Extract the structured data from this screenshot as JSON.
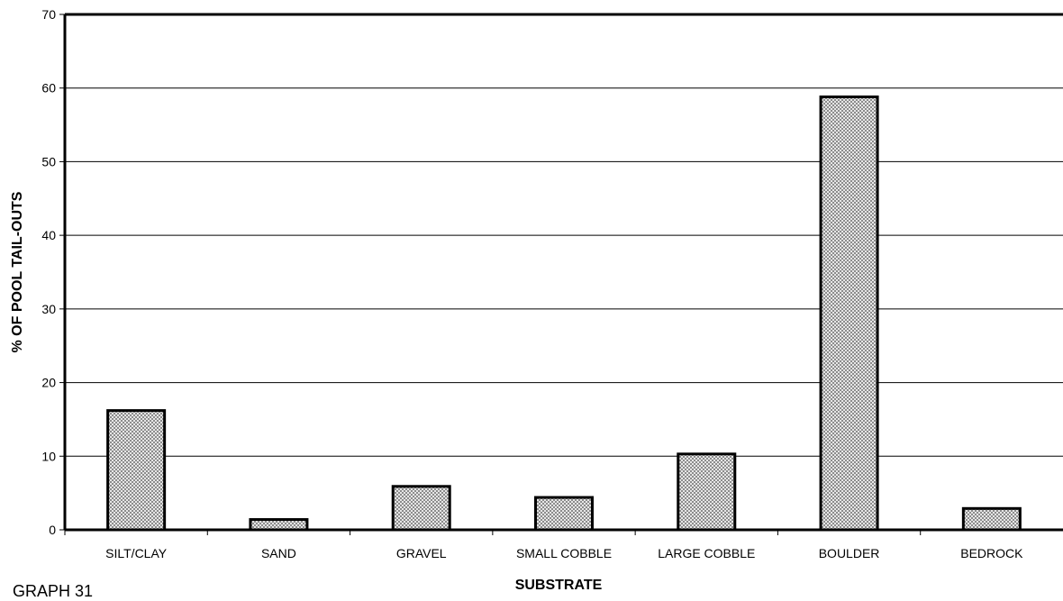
{
  "chart_data": {
    "type": "bar",
    "categories": [
      "SILT/CLAY",
      "SAND",
      "GRAVEL",
      "SMALL COBBLE",
      "LARGE COBBLE",
      "BOULDER",
      "BEDROCK"
    ],
    "values": [
      16.2,
      1.4,
      5.9,
      4.4,
      10.3,
      58.8,
      2.9
    ],
    "xlabel": "SUBSTRATE",
    "ylabel": "% OF POOL TAIL-OUTS",
    "ylim": [
      0,
      70
    ],
    "yticks": [
      0,
      10,
      20,
      30,
      40,
      50,
      60,
      70
    ],
    "grid": true,
    "legend": "none",
    "bar_fill": "#b4b4b4",
    "bar_stroke": "#000000"
  },
  "footer_label": "GRAPH 31"
}
